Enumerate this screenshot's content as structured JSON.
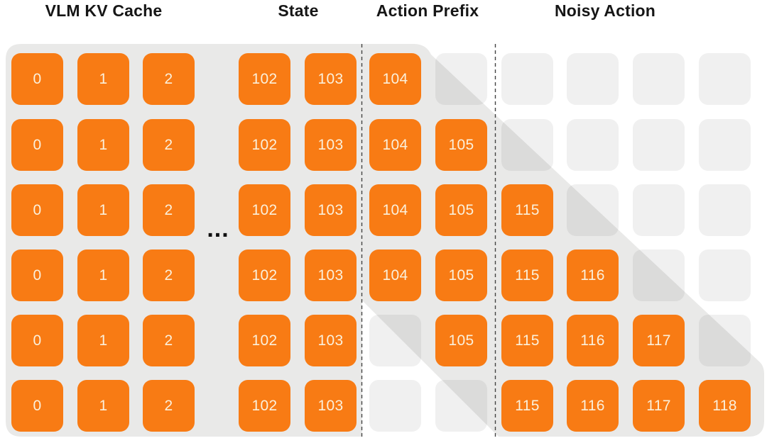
{
  "headers": [
    "VLM KV Cache",
    "State",
    "Action Prefix",
    "Noisy Action"
  ],
  "decorations": {
    "ellipsis": "..."
  },
  "colors": {
    "accent_orange": "#F87B14",
    "panel_gray": "#E9E9E8",
    "tile_label": "#FBF0DB",
    "masked_tile": "rgba(0,0,0,0.058)",
    "separator": "#444444"
  },
  "grid": {
    "section_columns": {
      "vlm_kv_cache": [
        "0",
        "1",
        "2",
        "102",
        "103"
      ],
      "action_prefix": [
        "104",
        "105"
      ],
      "noisy_action": [
        "115",
        "116",
        "117",
        "118"
      ]
    },
    "rows": [
      [
        "0",
        "1",
        "2",
        "102",
        "103",
        "104",
        "",
        "",
        "",
        "",
        ""
      ],
      [
        "0",
        "1",
        "2",
        "102",
        "103",
        "104",
        "105",
        "",
        "",
        "",
        ""
      ],
      [
        "0",
        "1",
        "2",
        "102",
        "103",
        "104",
        "105",
        "115",
        "",
        "",
        ""
      ],
      [
        "0",
        "1",
        "2",
        "102",
        "103",
        "104",
        "105",
        "115",
        "116",
        "",
        ""
      ],
      [
        "0",
        "1",
        "2",
        "102",
        "103",
        "",
        "105",
        "115",
        "116",
        "117",
        ""
      ],
      [
        "0",
        "1",
        "2",
        "102",
        "103",
        "",
        "",
        "115",
        "116",
        "117",
        "118"
      ]
    ]
  }
}
